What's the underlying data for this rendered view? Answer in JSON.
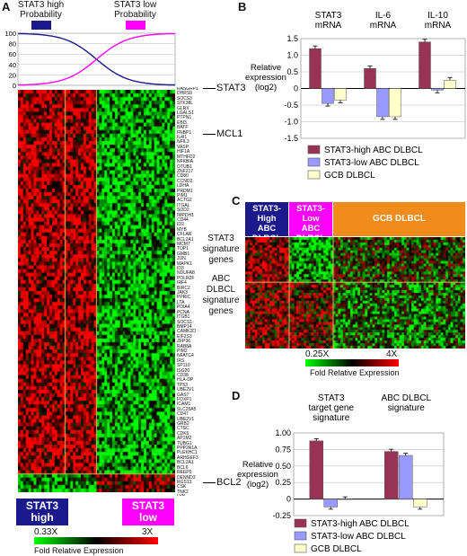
{
  "panel_a": {
    "label": "A",
    "prob_high_label_line1": "STAT3 high",
    "prob_high_label_line2": "Probability",
    "prob_low_label_line1": "STAT3 low",
    "prob_low_label_line2": "Probability",
    "yticks": [
      "100",
      "80",
      "60",
      "40",
      "20",
      "0"
    ],
    "markers": [
      "STAT3",
      "MCL1",
      "BCL2"
    ],
    "box_high_line1": "STAT3",
    "box_high_line2": "high",
    "box_low_line1": "STAT3",
    "box_low_line2": "low",
    "scale_min": "0.33X",
    "scale_max": "3X",
    "scale_caption": "Fold Relative Expression",
    "gene_list": [
      "RASGRP1",
      "DHRS9",
      "SOCS3",
      "STK38L",
      "GLRX",
      "LGALS1",
      "PTPN1",
      "EBI3",
      "BATF",
      "FNBP1",
      "IL4I1",
      "NFIL3",
      "VASP",
      "HIF1A",
      "MTHFD2",
      "NFKBIA",
      "OTUB1",
      "ZNF217",
      "CD80",
      "CCND2",
      "LDHA",
      "PRDM1",
      "PIM1",
      "ACTG2",
      "ITGAL",
      "SOD2",
      "IMPDH1",
      "CD44",
      "ID2",
      "MYB",
      "CFLAR",
      "BCL2A1",
      "MCM7",
      "TOP1",
      "GMB1",
      "JUN",
      "MAPK1",
      "ID3",
      "NDUFA8",
      "POLR2F",
      "IRF4",
      "BIRC2",
      "JAK3",
      "PPRIC",
      "LTA",
      "PDIA4",
      "PCNA",
      "ITGB1",
      "SOCS1",
      "BMP14",
      "CAMK2D",
      "EIF2S3",
      "ZFP36",
      "RAB8A",
      "PIM2",
      "NFATC4",
      "IRS",
      "SP110",
      "ISG20",
      "CD38",
      "HLA-DP",
      "TP53",
      "UBE2V1",
      "GAS7",
      "FOXP1",
      "ICAM1",
      "SLC25A5",
      "CD47",
      "UBE2V1",
      "GRB2",
      "CTSC",
      "CDK6",
      "AP1M2",
      "TUBG1",
      "PPP2R1A",
      "PLEKHC1",
      "ARHGEF3",
      "BCL2A1",
      "BCL6",
      "REEP5",
      "DENND3",
      "RGS13",
      "CSK",
      "TNK2",
      "LYN",
      "PIK3CD",
      "UG1BR6",
      "DGKA",
      "BCLAF1"
    ],
    "high_count_frac": 0.53,
    "gene_rows_stat3_top": 9,
    "gene_rows_bcl2_from_bottom": 9
  },
  "panel_b": {
    "label": "B",
    "chart_data": {
      "type": "bar",
      "categories": [
        "STAT3 mRNA",
        "IL-6 mRNA",
        "IL-10 mRNA"
      ],
      "series": [
        {
          "name": "STAT3-high ABC DLBCL",
          "values": [
            1.2,
            0.6,
            1.4
          ],
          "color": "#993355"
        },
        {
          "name": "STAT3-low ABC DLBCL",
          "values": [
            -0.45,
            -0.85,
            -0.05
          ],
          "color": "#9999ff"
        },
        {
          "name": "GCB DLBCL",
          "values": [
            -0.35,
            -0.85,
            0.25
          ],
          "color": "#ffffcc"
        }
      ],
      "yticks": [
        "1.5",
        "1.0",
        "0.5",
        "0",
        "-0.5",
        "-1.0",
        "-1.5"
      ],
      "ylim": [
        -1.5,
        1.5
      ],
      "ylabel_line1": "Relative",
      "ylabel_line2": "expression",
      "ylabel_line3": "(log2)",
      "category_labels": [
        [
          "STAT3",
          "mRNA"
        ],
        [
          "IL-6",
          "mRNA"
        ],
        [
          "IL-10",
          "mRNA"
        ]
      ]
    }
  },
  "panel_c": {
    "label": "C",
    "head_high": [
      "STAT3-High",
      "ABC",
      "DLBCL"
    ],
    "head_low": [
      "STAT3-Low",
      "ABC",
      "DLBCL"
    ],
    "head_gcb": "GCB DLBCL",
    "row1": [
      "STAT3",
      "signature",
      "genes"
    ],
    "row2": [
      "ABC",
      "DLBCL",
      "signature",
      "genes"
    ],
    "scale_min": "0.25X",
    "scale_max": "4X",
    "scale_caption": "Fold Relative Expression"
  },
  "panel_d": {
    "label": "D",
    "chart_data": {
      "type": "bar",
      "categories": [
        "STAT3 target gene signature",
        "ABC DLBCL signature"
      ],
      "series": [
        {
          "name": "STAT3-high ABC DLBCL",
          "values": [
            0.88,
            0.72
          ],
          "color": "#993355"
        },
        {
          "name": "STAT3-low ABC DLBCL",
          "values": [
            -0.12,
            0.66
          ],
          "color": "#9999ff"
        },
        {
          "name": "GCB DLBCL",
          "values": [
            0.0,
            -0.12
          ],
          "color": "#ffffcc"
        }
      ],
      "yticks": [
        "1.00",
        "0.75",
        "0.50",
        "0.25",
        "0",
        "-0.25"
      ],
      "ylim": [
        -0.25,
        1.0
      ],
      "ylabel_line1": "Relative",
      "ylabel_line2": "expression",
      "ylabel_line3": "(log2)",
      "category_labels": [
        [
          "STAT3",
          "target gene",
          "signature"
        ],
        [
          "ABC DLBCL",
          "signature"
        ]
      ]
    }
  }
}
